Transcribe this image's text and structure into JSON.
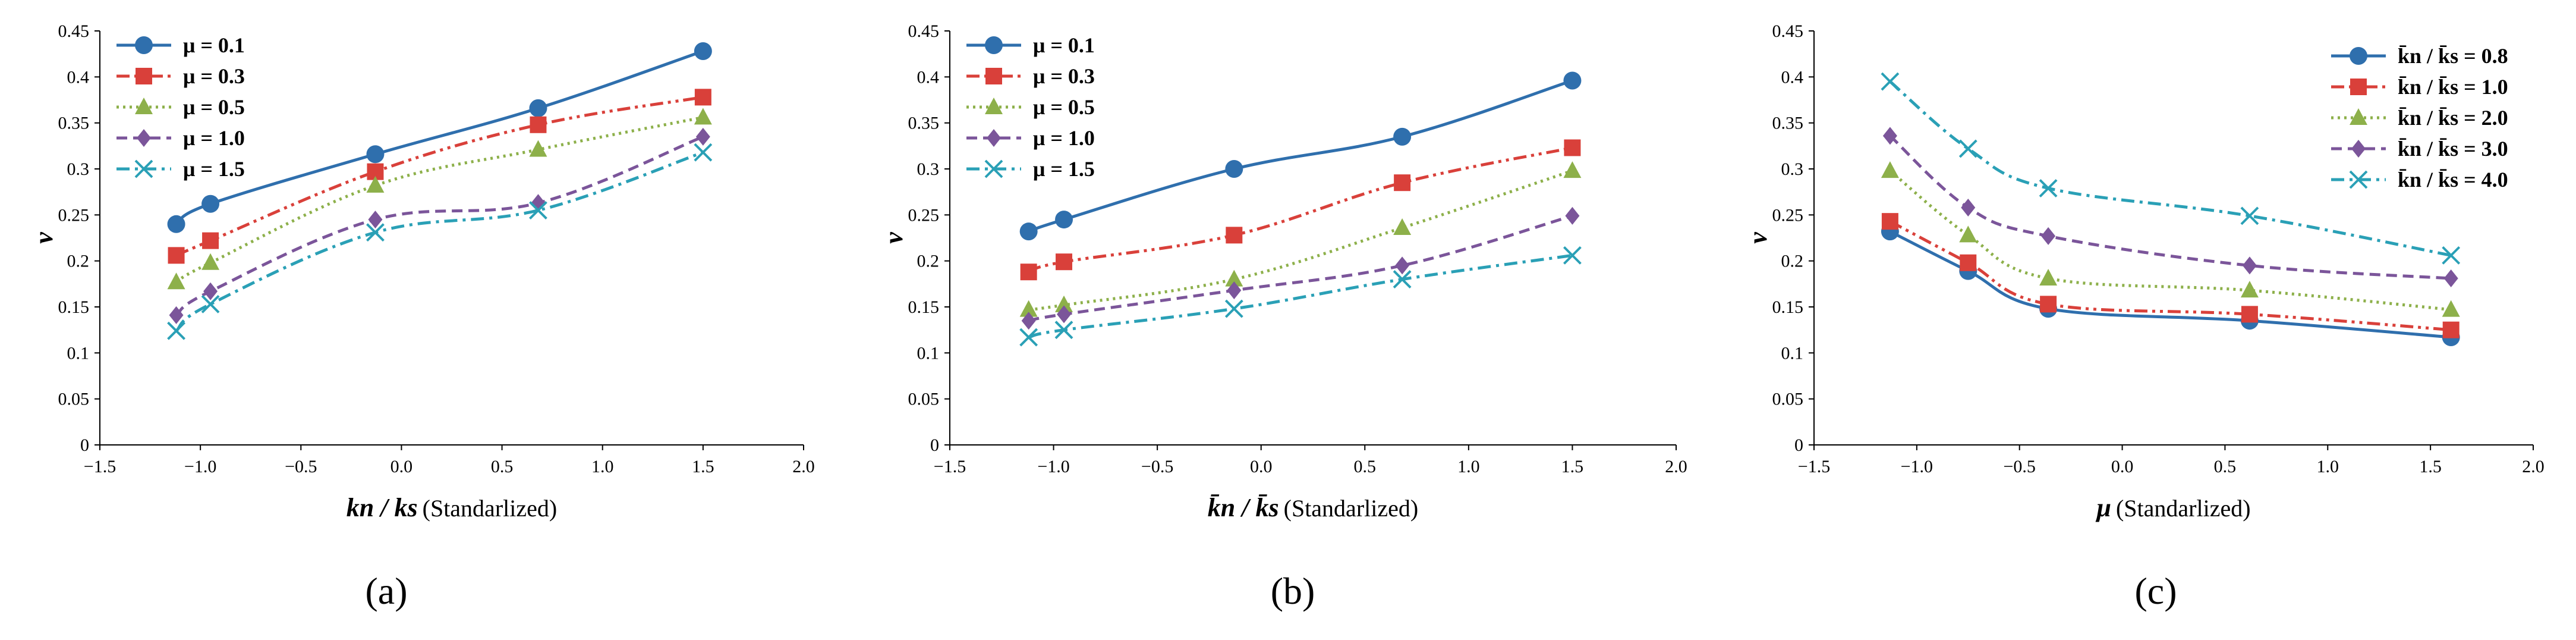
{
  "chart_data": [
    {
      "type": "line",
      "panel_label": "(a)",
      "xlabel_main": "kn / ks",
      "xlabel_note": "(Standarlized)",
      "ylabel": "ν",
      "xlim": [
        -1.5,
        2.0
      ],
      "ylim": [
        0,
        0.45
      ],
      "xticks": [
        -1.5,
        -1.0,
        -0.5,
        0.0,
        0.5,
        1.0,
        1.5,
        2.0
      ],
      "xtick_labels": [
        "−1.5",
        "−1.0",
        "−0.5",
        "0.0",
        "0.5",
        "1.0",
        "1.5",
        "2.0"
      ],
      "yticks": [
        0,
        0.05,
        0.1,
        0.15,
        0.2,
        0.25,
        0.3,
        0.35,
        0.4,
        0.45
      ],
      "ytick_labels": [
        "0",
        "0.05",
        "0.1",
        "0.15",
        "0.2",
        "0.25",
        "0.3",
        "0.35",
        "0.4",
        "0.45"
      ],
      "legend_position": "top-left",
      "series": [
        {
          "name": "μ = 0.1",
          "color": "#2f6fad",
          "dash": "solid",
          "marker": "circle",
          "x": [
            -1.12,
            -0.95,
            -0.13,
            0.68,
            1.5
          ],
          "y": [
            0.24,
            0.262,
            0.316,
            0.366,
            0.428
          ]
        },
        {
          "name": "μ = 0.3",
          "color": "#d9403a",
          "dash": "dashdotdot",
          "marker": "square",
          "x": [
            -1.12,
            -0.95,
            -0.13,
            0.68,
            1.5
          ],
          "y": [
            0.206,
            0.222,
            0.297,
            0.348,
            0.378
          ]
        },
        {
          "name": "μ = 0.5",
          "color": "#8db04a",
          "dash": "dotted",
          "marker": "triangle",
          "x": [
            -1.12,
            -0.95,
            -0.13,
            0.68,
            1.5
          ],
          "y": [
            0.177,
            0.198,
            0.282,
            0.321,
            0.356
          ]
        },
        {
          "name": "μ = 1.0",
          "color": "#7b559a",
          "dash": "dashed",
          "marker": "diamond",
          "x": [
            -1.12,
            -0.95,
            -0.13,
            0.68,
            1.5
          ],
          "y": [
            0.141,
            0.167,
            0.245,
            0.263,
            0.335
          ]
        },
        {
          "name": "μ = 1.5",
          "color": "#2aa0b6",
          "dash": "dashdot",
          "marker": "x",
          "x": [
            -1.12,
            -0.95,
            -0.13,
            0.68,
            1.5
          ],
          "y": [
            0.124,
            0.153,
            0.231,
            0.255,
            0.318
          ]
        }
      ]
    },
    {
      "type": "line",
      "panel_label": "(b)",
      "xlabel_main": "k̄n / k̄s",
      "xlabel_note": "(Standarlized)",
      "ylabel": "ν",
      "xlim": [
        -1.5,
        2.0
      ],
      "ylim": [
        0,
        0.45
      ],
      "xticks": [
        -1.5,
        -1.0,
        -0.5,
        0.0,
        0.5,
        1.0,
        1.5,
        2.0
      ],
      "xtick_labels": [
        "−1.5",
        "−1.0",
        "−0.5",
        "0.0",
        "0.5",
        "1.0",
        "1.5",
        "2.0"
      ],
      "yticks": [
        0,
        0.05,
        0.1,
        0.15,
        0.2,
        0.25,
        0.3,
        0.35,
        0.4,
        0.45
      ],
      "ytick_labels": [
        "0",
        "0.05",
        "0.1",
        "0.15",
        "0.2",
        "0.25",
        "0.3",
        "0.35",
        "0.4",
        "0.45"
      ],
      "legend_position": "top-left",
      "series": [
        {
          "name": "μ = 0.1",
          "color": "#2f6fad",
          "dash": "solid",
          "marker": "circle",
          "x": [
            -1.12,
            -0.95,
            -0.13,
            0.68,
            1.5
          ],
          "y": [
            0.232,
            0.245,
            0.3,
            0.335,
            0.396
          ]
        },
        {
          "name": "μ = 0.3",
          "color": "#d9403a",
          "dash": "dashdotdot",
          "marker": "square",
          "x": [
            -1.12,
            -0.95,
            -0.13,
            0.68,
            1.5
          ],
          "y": [
            0.188,
            0.199,
            0.228,
            0.285,
            0.323
          ]
        },
        {
          "name": "μ = 0.5",
          "color": "#8db04a",
          "dash": "dotted",
          "marker": "triangle",
          "x": [
            -1.12,
            -0.95,
            -0.13,
            0.68,
            1.5
          ],
          "y": [
            0.147,
            0.152,
            0.18,
            0.236,
            0.298
          ]
        },
        {
          "name": "μ = 1.0",
          "color": "#7b559a",
          "dash": "dashed",
          "marker": "diamond",
          "x": [
            -1.12,
            -0.95,
            -0.13,
            0.68,
            1.5
          ],
          "y": [
            0.135,
            0.142,
            0.168,
            0.195,
            0.249
          ]
        },
        {
          "name": "μ = 1.5",
          "color": "#2aa0b6",
          "dash": "dashdot",
          "marker": "x",
          "x": [
            -1.12,
            -0.95,
            -0.13,
            0.68,
            1.5
          ],
          "y": [
            0.117,
            0.125,
            0.148,
            0.18,
            0.206
          ]
        }
      ]
    },
    {
      "type": "line",
      "panel_label": "(c)",
      "xlabel_main": "μ",
      "xlabel_note": "(Standarlized)",
      "ylabel": "ν",
      "xlim": [
        -1.5,
        2.0
      ],
      "ylim": [
        0,
        0.45
      ],
      "xticks": [
        -1.5,
        -1.0,
        -0.5,
        0.0,
        0.5,
        1.0,
        1.5,
        2.0
      ],
      "xtick_labels": [
        "−1.5",
        "−1.0",
        "−0.5",
        "0.0",
        "0.5",
        "1.0",
        "1.5",
        "2.0"
      ],
      "yticks": [
        0,
        0.05,
        0.1,
        0.15,
        0.2,
        0.25,
        0.3,
        0.35,
        0.4,
        0.45
      ],
      "ytick_labels": [
        "0",
        "0.05",
        "0.1",
        "0.15",
        "0.2",
        "0.25",
        "0.3",
        "0.35",
        "0.4",
        "0.45"
      ],
      "legend_position": "top-right",
      "series": [
        {
          "name": "k̄n / k̄s = 0.8",
          "color": "#2f6fad",
          "dash": "solid",
          "marker": "circle",
          "x": [
            -1.13,
            -0.75,
            -0.36,
            0.62,
            1.6
          ],
          "y": [
            0.232,
            0.189,
            0.148,
            0.135,
            0.117
          ]
        },
        {
          "name": "k̄n / k̄s = 1.0",
          "color": "#d9403a",
          "dash": "dashdotdot",
          "marker": "square",
          "x": [
            -1.13,
            -0.75,
            -0.36,
            0.62,
            1.6
          ],
          "y": [
            0.243,
            0.198,
            0.153,
            0.142,
            0.125
          ]
        },
        {
          "name": "k̄n / k̄s = 2.0",
          "color": "#8db04a",
          "dash": "dotted",
          "marker": "triangle",
          "x": [
            -1.13,
            -0.75,
            -0.36,
            0.62,
            1.6
          ],
          "y": [
            0.298,
            0.228,
            0.181,
            0.168,
            0.147
          ]
        },
        {
          "name": "k̄n / k̄s = 3.0",
          "color": "#7b559a",
          "dash": "dashed",
          "marker": "diamond",
          "x": [
            -1.13,
            -0.75,
            -0.36,
            0.62,
            1.6
          ],
          "y": [
            0.336,
            0.258,
            0.227,
            0.195,
            0.181
          ]
        },
        {
          "name": "k̄n / k̄s = 4.0",
          "color": "#2aa0b6",
          "dash": "dashdot",
          "marker": "x",
          "x": [
            -1.13,
            -0.75,
            -0.36,
            0.62,
            1.6
          ],
          "y": [
            0.395,
            0.322,
            0.279,
            0.249,
            0.206
          ]
        }
      ]
    }
  ]
}
